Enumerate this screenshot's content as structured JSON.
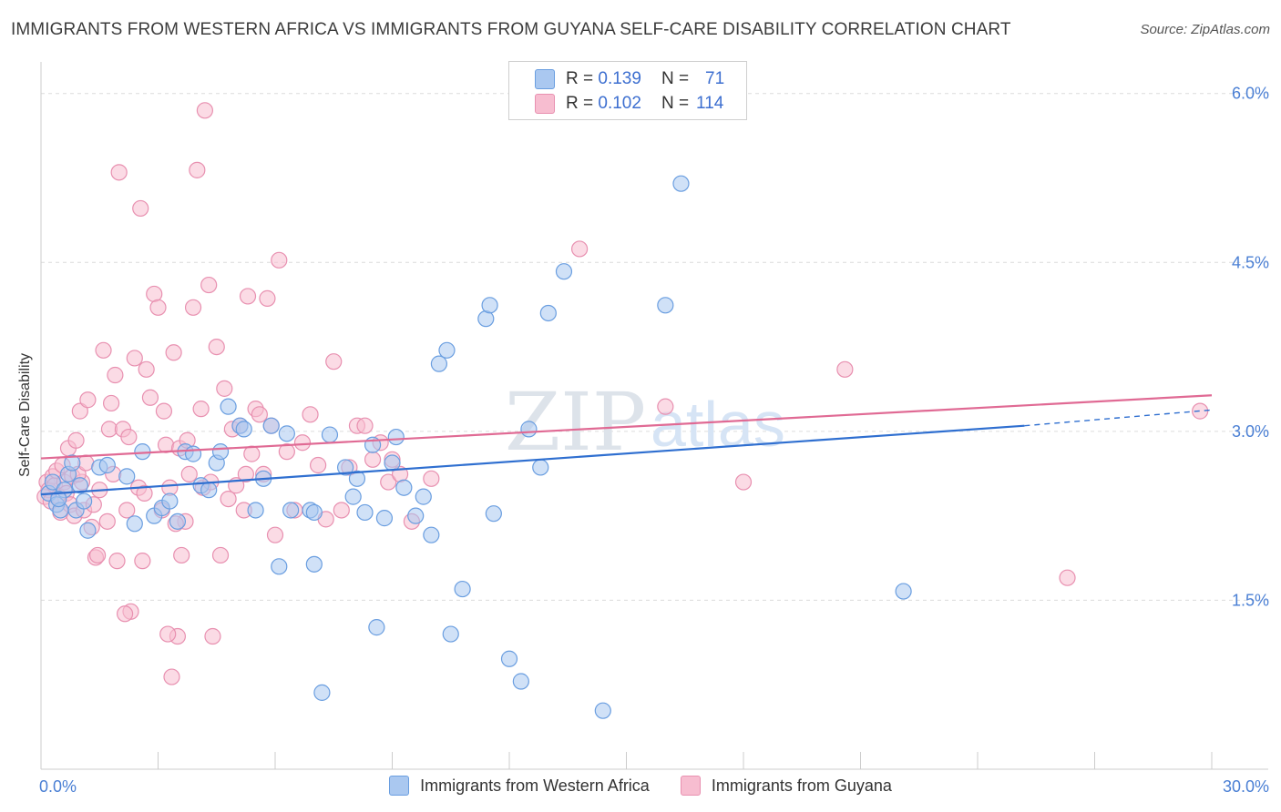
{
  "title": "IMMIGRANTS FROM WESTERN AFRICA VS IMMIGRANTS FROM GUYANA SELF-CARE DISABILITY CORRELATION CHART",
  "source": "Source: ZipAtlas.com",
  "watermark": {
    "zip": "ZIP",
    "atlas": "atlas"
  },
  "legend": {
    "rows": [
      {
        "r_label": "R =",
        "r_value": "0.139",
        "n_label": "N =",
        "n_value": "71"
      },
      {
        "r_label": "R =",
        "r_value": "0.102",
        "n_label": "N =",
        "n_value": "114"
      }
    ]
  },
  "bottom_legend": [
    "Immigrants from Western Africa",
    "Immigrants from Guyana"
  ],
  "colors": {
    "blue_fill": "#aac8f0",
    "blue_stroke": "#6a9ee0",
    "blue_line": "#2f6fd0",
    "pink_fill": "#f7bdd0",
    "pink_stroke": "#e890b0",
    "pink_line": "#e06a94",
    "axis_label": "#4a7fd4",
    "grid": "#dcdcdc"
  },
  "chart_data": {
    "type": "scatter",
    "title": "IMMIGRANTS FROM WESTERN AFRICA VS IMMIGRANTS FROM GUYANA SELF-CARE DISABILITY CORRELATION CHART",
    "xlabel": "",
    "ylabel": "Self-Care Disability",
    "xlim": [
      0,
      30
    ],
    "ylim": [
      0,
      6.2
    ],
    "x_tick_labels": [
      "0.0%",
      "30.0%"
    ],
    "y_ticks": [
      1.5,
      3.0,
      4.5,
      6.0
    ],
    "y_tick_labels": [
      "1.5%",
      "3.0%",
      "4.5%",
      "6.0%"
    ],
    "grid": true,
    "legend_position": "top-center",
    "series": [
      {
        "name": "Immigrants from Western Africa",
        "r": 0.139,
        "n": 71,
        "trend": {
          "x": [
            0,
            25.2
          ],
          "y": [
            2.44,
            3.05
          ],
          "dashed_to": [
            30,
            3.19
          ]
        },
        "points": [
          [
            0.2,
            2.45
          ],
          [
            0.3,
            2.55
          ],
          [
            0.4,
            2.35
          ],
          [
            0.5,
            2.3
          ],
          [
            0.6,
            2.48
          ],
          [
            0.7,
            2.62
          ],
          [
            0.8,
            2.72
          ],
          [
            0.9,
            2.3
          ],
          [
            1.0,
            2.52
          ],
          [
            1.1,
            2.38
          ],
          [
            1.2,
            2.12
          ],
          [
            1.5,
            2.68
          ],
          [
            1.7,
            2.7
          ],
          [
            2.2,
            2.6
          ],
          [
            2.4,
            2.18
          ],
          [
            2.6,
            2.82
          ],
          [
            2.9,
            2.25
          ],
          [
            3.1,
            2.32
          ],
          [
            3.3,
            2.38
          ],
          [
            3.5,
            2.2
          ],
          [
            3.7,
            2.82
          ],
          [
            3.9,
            2.8
          ],
          [
            4.1,
            2.52
          ],
          [
            4.3,
            2.48
          ],
          [
            4.5,
            2.72
          ],
          [
            4.6,
            2.82
          ],
          [
            4.8,
            3.22
          ],
          [
            5.1,
            3.05
          ],
          [
            5.2,
            3.02
          ],
          [
            5.5,
            2.3
          ],
          [
            5.7,
            2.58
          ],
          [
            5.9,
            3.05
          ],
          [
            6.1,
            1.8
          ],
          [
            6.3,
            2.98
          ],
          [
            6.4,
            2.3
          ],
          [
            6.9,
            2.3
          ],
          [
            7.0,
            2.28
          ],
          [
            7.4,
            2.97
          ],
          [
            7.8,
            2.68
          ],
          [
            8.0,
            2.42
          ],
          [
            8.1,
            2.58
          ],
          [
            8.3,
            2.28
          ],
          [
            8.5,
            2.88
          ],
          [
            8.8,
            2.23
          ],
          [
            9.0,
            2.72
          ],
          [
            9.1,
            2.95
          ],
          [
            9.3,
            2.5
          ],
          [
            9.6,
            2.25
          ],
          [
            9.8,
            2.42
          ],
          [
            10.0,
            2.08
          ],
          [
            10.2,
            3.6
          ],
          [
            10.4,
            3.72
          ],
          [
            10.8,
            1.6
          ],
          [
            11.4,
            4.0
          ],
          [
            11.5,
            4.12
          ],
          [
            11.6,
            2.27
          ],
          [
            12.0,
            0.98
          ],
          [
            12.3,
            0.78
          ],
          [
            12.5,
            3.02
          ],
          [
            12.8,
            2.68
          ],
          [
            13.0,
            4.05
          ],
          [
            13.4,
            4.42
          ],
          [
            14.4,
            0.52
          ],
          [
            16.0,
            4.12
          ],
          [
            16.4,
            5.2
          ],
          [
            22.1,
            1.58
          ],
          [
            10.5,
            1.2
          ],
          [
            7.2,
            0.68
          ],
          [
            8.6,
            1.26
          ],
          [
            7.0,
            1.82
          ],
          [
            0.45,
            2.4
          ]
        ]
      },
      {
        "name": "Immigrants from Guyana",
        "r": 0.102,
        "n": 114,
        "trend": {
          "x": [
            0,
            30
          ],
          "y": [
            2.76,
            3.32
          ]
        },
        "points": [
          [
            0.1,
            2.42
          ],
          [
            0.15,
            2.55
          ],
          [
            0.2,
            2.48
          ],
          [
            0.25,
            2.38
          ],
          [
            0.3,
            2.6
          ],
          [
            0.35,
            2.52
          ],
          [
            0.4,
            2.65
          ],
          [
            0.45,
            2.42
          ],
          [
            0.5,
            2.28
          ],
          [
            0.55,
            2.7
          ],
          [
            0.6,
            2.55
          ],
          [
            0.65,
            2.45
          ],
          [
            0.7,
            2.85
          ],
          [
            0.75,
            2.35
          ],
          [
            0.8,
            2.6
          ],
          [
            0.85,
            2.25
          ],
          [
            0.9,
            2.92
          ],
          [
            1.0,
            3.18
          ],
          [
            1.05,
            2.55
          ],
          [
            1.1,
            2.3
          ],
          [
            1.2,
            3.28
          ],
          [
            1.3,
            2.15
          ],
          [
            1.35,
            2.35
          ],
          [
            1.4,
            1.88
          ],
          [
            1.45,
            1.9
          ],
          [
            1.5,
            2.48
          ],
          [
            1.6,
            3.72
          ],
          [
            1.7,
            2.2
          ],
          [
            1.75,
            3.02
          ],
          [
            1.8,
            3.25
          ],
          [
            1.85,
            2.62
          ],
          [
            1.9,
            3.5
          ],
          [
            1.95,
            1.85
          ],
          [
            2.0,
            5.3
          ],
          [
            2.1,
            3.02
          ],
          [
            2.2,
            2.3
          ],
          [
            2.25,
            2.95
          ],
          [
            2.3,
            1.4
          ],
          [
            2.4,
            3.65
          ],
          [
            2.5,
            2.5
          ],
          [
            2.55,
            4.98
          ],
          [
            2.6,
            1.85
          ],
          [
            2.7,
            3.55
          ],
          [
            2.8,
            3.3
          ],
          [
            2.9,
            4.22
          ],
          [
            3.0,
            4.1
          ],
          [
            3.1,
            2.3
          ],
          [
            3.15,
            3.18
          ],
          [
            3.2,
            2.88
          ],
          [
            3.3,
            2.5
          ],
          [
            3.35,
            0.82
          ],
          [
            3.4,
            3.7
          ],
          [
            3.5,
            1.18
          ],
          [
            3.55,
            2.85
          ],
          [
            3.6,
            1.9
          ],
          [
            3.7,
            2.2
          ],
          [
            3.75,
            2.92
          ],
          [
            3.8,
            2.62
          ],
          [
            3.9,
            4.1
          ],
          [
            4.0,
            5.32
          ],
          [
            4.1,
            3.2
          ],
          [
            4.15,
            2.5
          ],
          [
            4.2,
            5.85
          ],
          [
            4.3,
            4.3
          ],
          [
            4.4,
            1.18
          ],
          [
            4.5,
            3.75
          ],
          [
            4.6,
            1.9
          ],
          [
            4.7,
            3.38
          ],
          [
            4.8,
            2.4
          ],
          [
            4.9,
            3.02
          ],
          [
            5.0,
            2.52
          ],
          [
            5.1,
            3.05
          ],
          [
            5.2,
            2.3
          ],
          [
            5.3,
            4.2
          ],
          [
            5.4,
            2.8
          ],
          [
            5.5,
            3.2
          ],
          [
            5.6,
            3.15
          ],
          [
            5.7,
            2.62
          ],
          [
            5.8,
            4.18
          ],
          [
            5.9,
            3.05
          ],
          [
            6.0,
            2.08
          ],
          [
            6.1,
            4.52
          ],
          [
            6.3,
            2.82
          ],
          [
            6.5,
            2.3
          ],
          [
            6.7,
            2.9
          ],
          [
            6.9,
            3.15
          ],
          [
            7.1,
            2.7
          ],
          [
            7.3,
            2.22
          ],
          [
            7.5,
            3.62
          ],
          [
            7.7,
            2.3
          ],
          [
            7.9,
            2.68
          ],
          [
            8.1,
            3.05
          ],
          [
            8.3,
            3.05
          ],
          [
            8.5,
            2.75
          ],
          [
            8.7,
            2.9
          ],
          [
            8.9,
            2.55
          ],
          [
            9.0,
            2.75
          ],
          [
            9.2,
            2.62
          ],
          [
            9.5,
            2.2
          ],
          [
            10.0,
            2.58
          ],
          [
            13.8,
            4.62
          ],
          [
            16.0,
            3.22
          ],
          [
            18.0,
            2.55
          ],
          [
            20.6,
            3.55
          ],
          [
            26.3,
            1.7
          ],
          [
            29.7,
            3.18
          ],
          [
            2.15,
            1.38
          ],
          [
            3.25,
            1.2
          ],
          [
            0.95,
            2.62
          ],
          [
            1.15,
            2.72
          ],
          [
            2.65,
            2.45
          ],
          [
            3.45,
            2.18
          ],
          [
            4.35,
            2.55
          ],
          [
            5.25,
            2.62
          ]
        ]
      }
    ]
  }
}
